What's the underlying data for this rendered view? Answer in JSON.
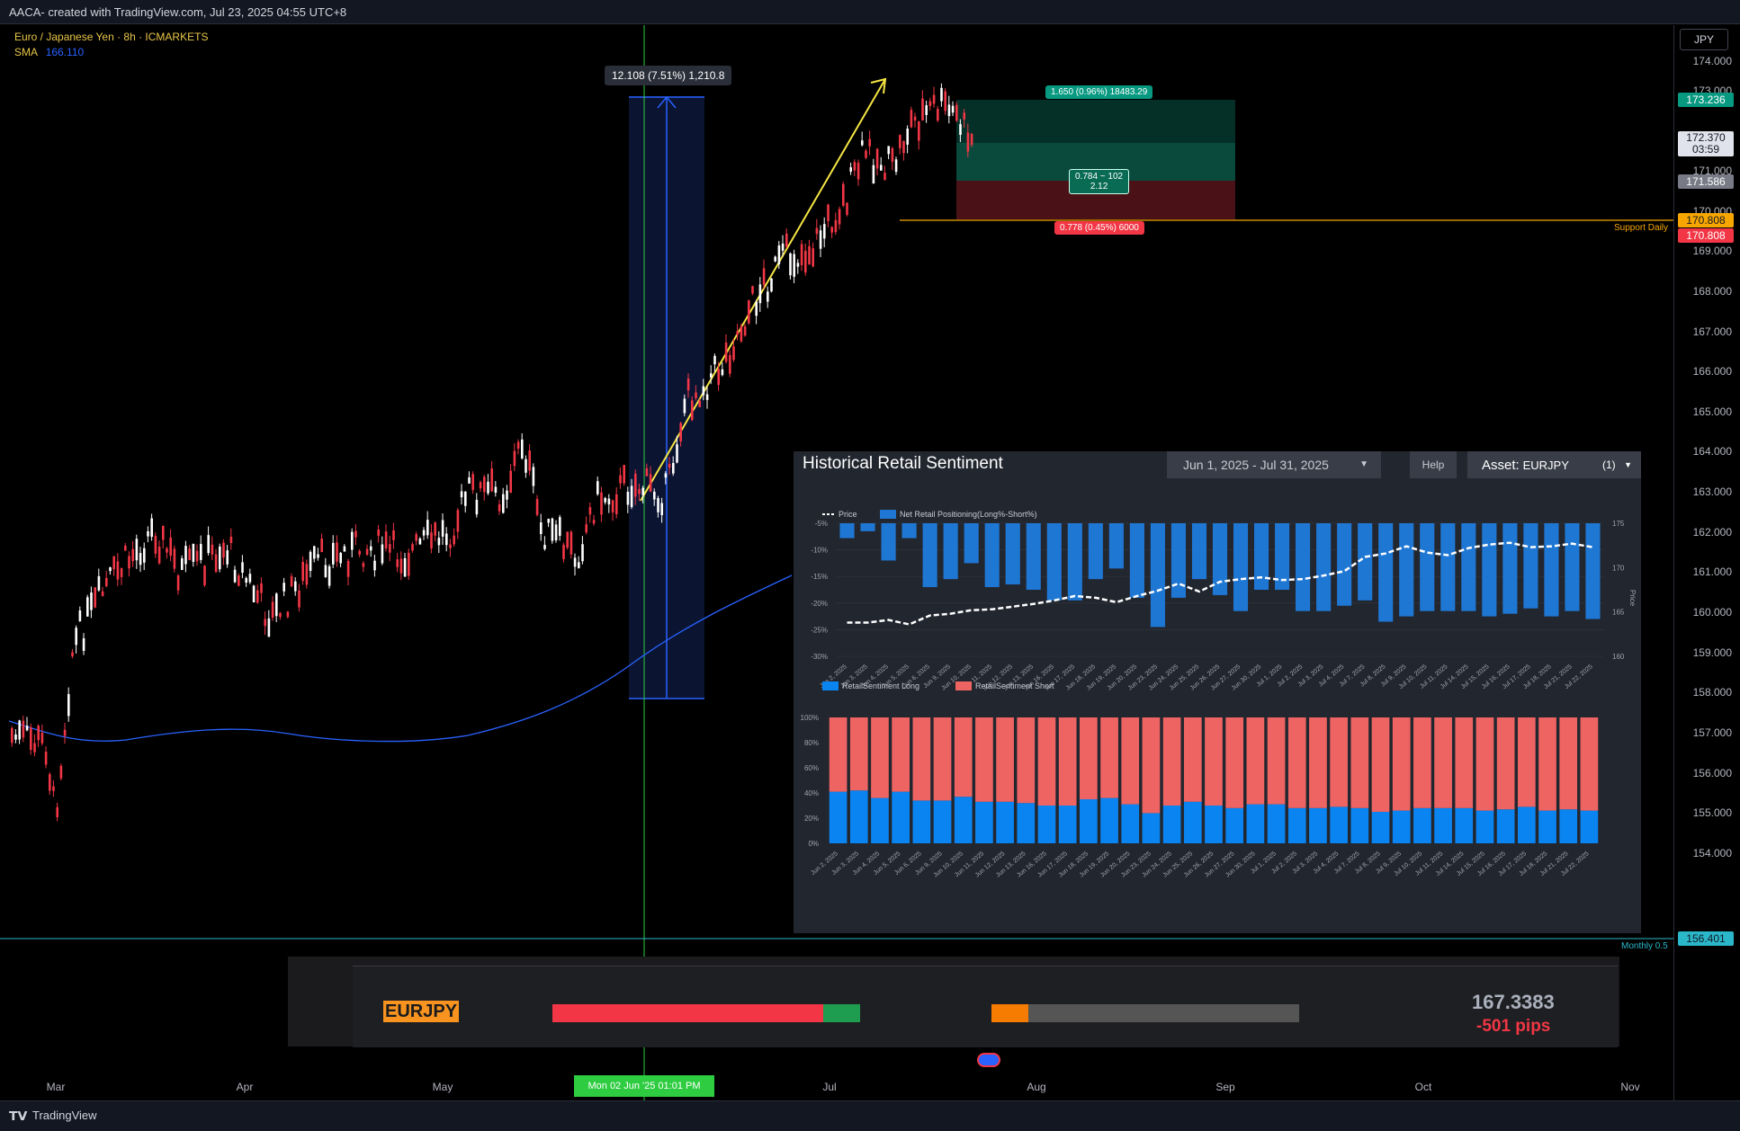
{
  "topbar": {
    "caption": "AACA- created with TradingView.com, Jul 23, 2025 04:55 UTC+8"
  },
  "legend": {
    "symbol": "Euro / Japanese Yen · 8h · ICMARKETS",
    "sma_label": "SMA",
    "sma_value": "166.110"
  },
  "currency_button": "JPY",
  "price_axis": {
    "ticks": [
      "174.000",
      "173.000",
      "171.000",
      "170.000",
      "169.000",
      "168.000",
      "167.000",
      "166.000",
      "165.000",
      "164.000",
      "163.000",
      "162.000",
      "161.000",
      "160.000",
      "159.000",
      "158.000",
      "157.000",
      "156.000",
      "155.000",
      "154.000"
    ],
    "labels": {
      "tp": "173.236",
      "last": "172.370",
      "countdown": "03:59",
      "entry": "171.586",
      "support_orange": "170.808",
      "support_red": "170.808",
      "monthly": "156.401"
    },
    "colors": {
      "tp": "#089981",
      "last_bg": "#e0e3eb",
      "entry": "#787b86",
      "orange": "#f7a600",
      "red": "#f23645",
      "monthly": "#2ab7ca"
    }
  },
  "time_axis": {
    "labels": [
      "Mar",
      "Apr",
      "May",
      "Jul",
      "Aug",
      "Sep",
      "Oct",
      "Nov"
    ],
    "crosshair_label": "Mon 02 Jun '25   01:01 PM"
  },
  "annotations": {
    "measure_label": "12.108 (7.51%) 1,210.8",
    "target_label": "1.650 (0.96%) 18483.29",
    "rr_label_line1": "0.784 ~ 102",
    "rr_label_line2": "2.12",
    "stop_label": "0.778 (0.45%) 6000",
    "support_daily": "Support Daily",
    "monthly_label": "Monthly 0.5"
  },
  "sentiment_panel": {
    "title": "Historical Retail Sentiment",
    "date_range": "Jun 1, 2025 - Jul 31, 2025",
    "help_button": "Help",
    "asset_label": "Asset:",
    "asset_value": "EURJPY",
    "asset_count": "(1)",
    "top_chart": {
      "legend_price": "Price",
      "legend_net": "Net Retail Positioning(Long%-Short%)",
      "y_left_ticks": [
        "-5%",
        "-10%",
        "-15%",
        "-20%",
        "-25%",
        "-30%"
      ],
      "y_right_ticks": [
        "175",
        "170",
        "165",
        "160"
      ],
      "y_right_label": "Price"
    },
    "bottom_chart": {
      "legend_long": "RetailSentiment Long",
      "legend_short": "RetailSentiment Short",
      "y_ticks": [
        "100%",
        "80%",
        "60%",
        "40%",
        "20%",
        "0%"
      ]
    },
    "colors": {
      "net": "#1f77d4",
      "long": "#0a84f0",
      "short": "#ee6462",
      "price": "#ffffff"
    }
  },
  "chart_data": [
    {
      "type": "bar",
      "title": "",
      "categories": [
        "Jun 2, 2025",
        "Jun 3, 2025",
        "Jun 4, 2025",
        "Jun 5, 2025",
        "Jun 6, 2025",
        "Jun 9, 2025",
        "Jun 10, 2025",
        "Jun 11, 2025",
        "Jun 12, 2025",
        "Jun 13, 2025",
        "Jun 16, 2025",
        "Jun 17, 2025",
        "Jun 18, 2025",
        "Jun 19, 2025",
        "Jun 20, 2025",
        "Jun 23, 2025",
        "Jun 24, 2025",
        "Jun 25, 2025",
        "Jun 26, 2025",
        "Jun 27, 2025",
        "Jun 30, 2025",
        "Jul 1, 2025",
        "Jul 2, 2025",
        "Jul 3, 2025",
        "Jul 4, 2025",
        "Jul 7, 2025",
        "Jul 8, 2025",
        "Jul 9, 2025",
        "Jul 10, 2025",
        "Jul 11, 2025",
        "Jul 14, 2025",
        "Jul 15, 2025",
        "Jul 16, 2025",
        "Jul 17, 2025",
        "Jul 18, 2025",
        "Jul 21, 2025",
        "Jul 22, 2025"
      ],
      "series": [
        {
          "name": "Net Retail Positioning(Long%-Short%)",
          "axis": "left",
          "values": [
            -7.8,
            -6.5,
            -12,
            -7.8,
            -17,
            -15.5,
            -12.5,
            -17,
            -16.5,
            -17.5,
            -19.5,
            -19.5,
            -15.5,
            -13.5,
            -19,
            -24.5,
            -19,
            -15.5,
            -18.5,
            -21.5,
            -17.5,
            -17.5,
            -21.5,
            -21.5,
            -20.5,
            -19.5,
            -23.5,
            -22.5,
            -21.5,
            -21.5,
            -21.5,
            -22.5,
            -22,
            -21,
            -22.5,
            -21.5,
            -23
          ]
        },
        {
          "name": "Price",
          "axis": "right",
          "values": [
            163.8,
            163.8,
            164.1,
            163.6,
            164.6,
            164.8,
            165.2,
            165.3,
            165.6,
            165.9,
            166.3,
            166.8,
            166.6,
            166.1,
            166.8,
            167.4,
            168.2,
            167.3,
            168.4,
            168.7,
            168.9,
            168.6,
            168.7,
            169.1,
            169.6,
            171.2,
            171.6,
            172.4,
            171.7,
            171.4,
            172.2,
            172.6,
            172.8,
            172.3,
            172.4,
            172.7,
            172.3
          ]
        }
      ],
      "ylim_left": [
        -30,
        -5
      ],
      "ylim_right": [
        160,
        175
      ],
      "ylabel_right": "Price"
    },
    {
      "type": "bar",
      "title": "",
      "stacked": true,
      "categories": [
        "Jun 2, 2025",
        "Jun 3, 2025",
        "Jun 4, 2025",
        "Jun 5, 2025",
        "Jun 6, 2025",
        "Jun 9, 2025",
        "Jun 10, 2025",
        "Jun 11, 2025",
        "Jun 12, 2025",
        "Jun 13, 2025",
        "Jun 16, 2025",
        "Jun 17, 2025",
        "Jun 18, 2025",
        "Jun 19, 2025",
        "Jun 20, 2025",
        "Jun 23, 2025",
        "Jun 24, 2025",
        "Jun 25, 2025",
        "Jun 26, 2025",
        "Jun 27, 2025",
        "Jun 30, 2025",
        "Jul 1, 2025",
        "Jul 2, 2025",
        "Jul 3, 2025",
        "Jul 4, 2025",
        "Jul 7, 2025",
        "Jul 8, 2025",
        "Jul 9, 2025",
        "Jul 10, 2025",
        "Jul 11, 2025",
        "Jul 14, 2025",
        "Jul 15, 2025",
        "Jul 16, 2025",
        "Jul 17, 2025",
        "Jul 18, 2025",
        "Jul 21, 2025",
        "Jul 22, 2025"
      ],
      "series": [
        {
          "name": "RetailSentiment Long",
          "values": [
            41,
            42,
            36,
            41,
            34,
            34,
            37,
            33,
            33,
            32,
            30,
            30,
            35,
            36,
            31,
            24,
            30,
            33,
            30,
            28,
            31,
            31,
            28,
            28,
            29,
            28,
            25,
            26,
            28,
            28,
            28,
            26,
            27,
            29,
            26,
            27,
            26
          ]
        },
        {
          "name": "RetailSentiment Short",
          "values": [
            59,
            58,
            64,
            59,
            66,
            66,
            63,
            67,
            67,
            68,
            70,
            70,
            65,
            64,
            69,
            76,
            70,
            67,
            70,
            72,
            69,
            69,
            72,
            72,
            71,
            72,
            75,
            74,
            72,
            72,
            72,
            74,
            73,
            71,
            74,
            73,
            74
          ]
        }
      ],
      "ylim": [
        0,
        100
      ]
    }
  ],
  "widget": {
    "symbol": "EURJPY",
    "price": "167.3383",
    "pips": "-501 pips",
    "bar1_red_fraction": 0.88,
    "bar2_orange_fraction": 0.12
  },
  "footer": {
    "brand": "TradingView"
  }
}
